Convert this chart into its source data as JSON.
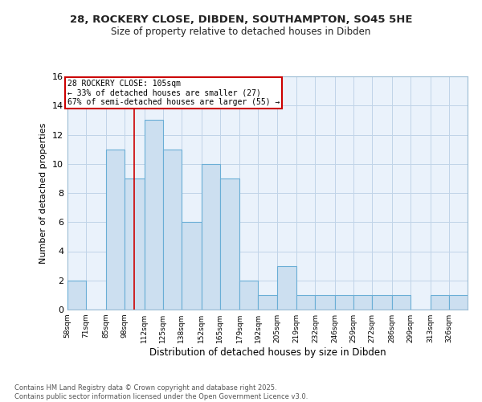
{
  "title_line1": "28, ROCKERY CLOSE, DIBDEN, SOUTHAMPTON, SO45 5HE",
  "title_line2": "Size of property relative to detached houses in Dibden",
  "xlabel": "Distribution of detached houses by size in Dibden",
  "ylabel": "Number of detached properties",
  "bins": [
    58,
    71,
    85,
    98,
    112,
    125,
    138,
    152,
    165,
    179,
    192,
    205,
    219,
    232,
    246,
    259,
    272,
    286,
    299,
    313,
    326
  ],
  "heights": [
    2,
    0,
    11,
    9,
    13,
    11,
    6,
    10,
    9,
    2,
    1,
    3,
    1,
    1,
    1,
    1,
    1,
    1,
    0,
    1,
    1
  ],
  "bar_color": "#ccdff0",
  "bar_edge_color": "#6aaed6",
  "red_line_x": 105,
  "ylim": [
    0,
    16
  ],
  "yticks": [
    0,
    2,
    4,
    6,
    8,
    10,
    12,
    14,
    16
  ],
  "annotation_text": "28 ROCKERY CLOSE: 105sqm\n← 33% of detached houses are smaller (27)\n67% of semi-detached houses are larger (55) →",
  "annotation_box_color": "#ffffff",
  "annotation_box_edge_color": "#cc0000",
  "footer_text": "Contains HM Land Registry data © Crown copyright and database right 2025.\nContains public sector information licensed under the Open Government Licence v3.0.",
  "background_color": "#ffffff",
  "plot_bg_color": "#eaf2fb",
  "grid_color": "#c0d4e8"
}
